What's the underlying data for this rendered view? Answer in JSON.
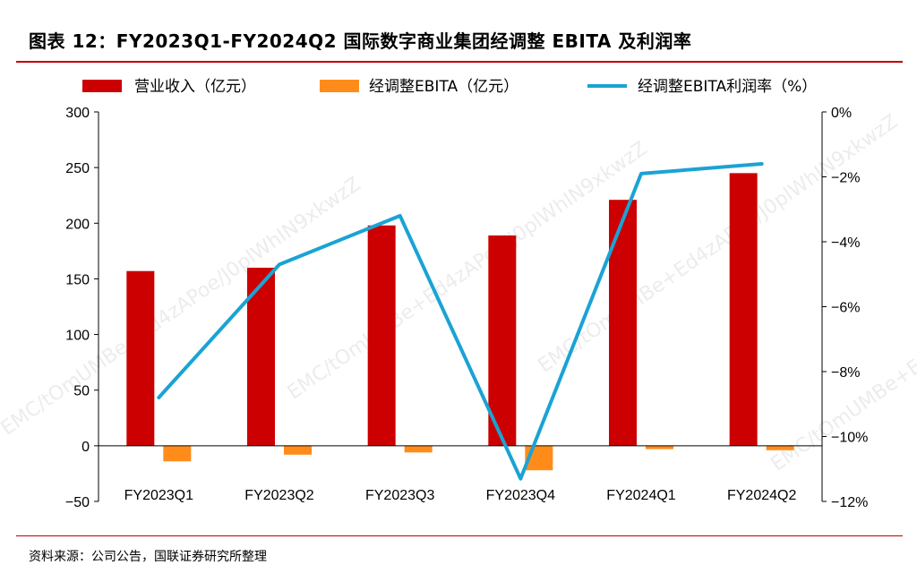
{
  "title": "图表 12：FY2023Q1-FY2024Q2 国际数字商业集团经调整 EBITA 及利润率",
  "source": "资料来源：公司公告，国联证券研究所整理",
  "colors": {
    "revenue": "#cc0000",
    "ebita": "#ff8c1a",
    "margin": "#1aa3d4",
    "rule": "#c00000"
  },
  "chart_data": {
    "type": "bar",
    "categories": [
      "FY2023Q1",
      "FY2023Q2",
      "FY2023Q3",
      "FY2023Q4",
      "FY2024Q1",
      "FY2024Q2"
    ],
    "series": [
      {
        "name": "营业收入（亿元）",
        "type": "bar",
        "axis": "left",
        "values": [
          157,
          160,
          198,
          189,
          221,
          245
        ]
      },
      {
        "name": "经调整EBITA（亿元）",
        "type": "bar",
        "axis": "left",
        "values": [
          -14,
          -8,
          -6,
          -22,
          -3,
          -4
        ]
      },
      {
        "name": "经调整EBITA利润率（%）",
        "type": "line",
        "axis": "right",
        "values": [
          -8.8,
          -4.7,
          -3.2,
          -11.3,
          -1.9,
          -1.6
        ]
      }
    ],
    "left_axis": {
      "min": -50,
      "max": 300,
      "ticks": [
        -50,
        0,
        50,
        100,
        150,
        200,
        250,
        300
      ],
      "tick_labels": [
        "−50",
        "0",
        "50",
        "100",
        "150",
        "200",
        "250",
        "300"
      ]
    },
    "right_axis": {
      "min": -12,
      "max": 0,
      "ticks": [
        -12,
        -10,
        -8,
        -6,
        -4,
        -2,
        0
      ],
      "tick_labels": [
        "−12%",
        "−10%",
        "−8%",
        "−6%",
        "−4%",
        "−2%",
        "0%"
      ]
    },
    "legend_position": "top",
    "grid": false
  },
  "watermarks": [
    "EMC/tOmUMBe+Ed4zAPoe/J0plWhIN9xkwzZ",
    "EMC/tOmUMBe+Ed4zAPoe/J0plWhIN9xkwzZ",
    "EMC/tOmUMBe+Ed4zAPoe/J0plWhIN9xkwzZ",
    "EMC/tOmUMBe+Ed4zAPoe/J0plWhIN9xkwzZ"
  ]
}
